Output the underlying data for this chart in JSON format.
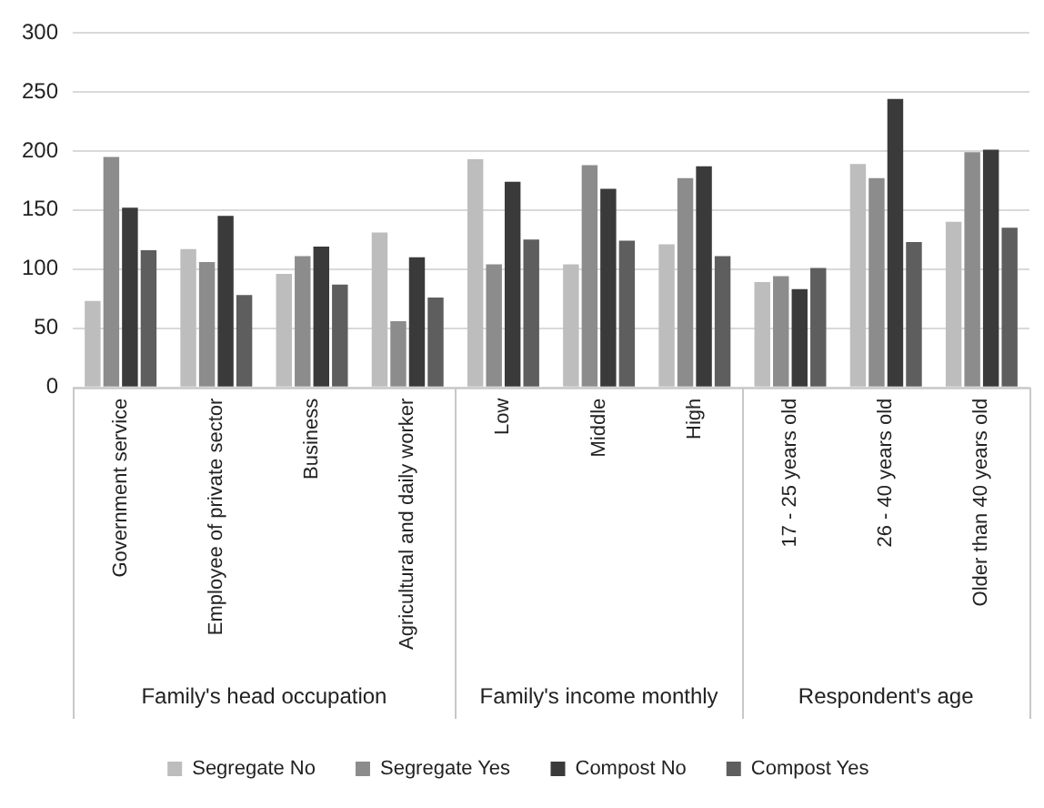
{
  "chart_data": {
    "type": "bar",
    "categories": [
      "Government service",
      "Employee of private sector",
      "Business",
      "Agricultural and daily worker",
      "Low",
      "Middle",
      "High",
      "17 - 25 years old",
      "26 - 40 years old",
      "Older than 40 years old"
    ],
    "series": [
      {
        "name": "Segregate No",
        "color": "#bdbdbd",
        "values": [
          73,
          117,
          96,
          131,
          193,
          104,
          121,
          89,
          189,
          140
        ]
      },
      {
        "name": "Segregate Yes",
        "color": "#8c8c8c",
        "values": [
          195,
          106,
          111,
          56,
          104,
          188,
          177,
          94,
          177,
          199
        ]
      },
      {
        "name": "Compost No",
        "color": "#3a3a3a",
        "values": [
          152,
          145,
          119,
          110,
          174,
          168,
          187,
          83,
          244,
          201
        ]
      },
      {
        "name": "Compost Yes",
        "color": "#5e5e5e",
        "values": [
          116,
          78,
          87,
          76,
          125,
          124,
          111,
          101,
          123,
          135
        ]
      }
    ],
    "annotations": [
      "Family's head occupation",
      "Family's income monthly",
      "Respondent's age"
    ],
    "ylim": [
      0,
      300
    ],
    "yticks": [
      0,
      50,
      100,
      150,
      200,
      250,
      300
    ],
    "grid": "y",
    "legend": "bottom"
  }
}
